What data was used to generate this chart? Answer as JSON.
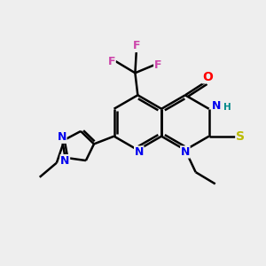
{
  "background_color": "#eeeeee",
  "bond_color": "#000000",
  "atom_colors": {
    "N": "#0000ee",
    "O": "#ff0000",
    "S": "#bbbb00",
    "F": "#cc44aa",
    "H": "#008888",
    "C": "#000000"
  },
  "figsize": [
    3.0,
    3.0
  ],
  "dpi": 100
}
